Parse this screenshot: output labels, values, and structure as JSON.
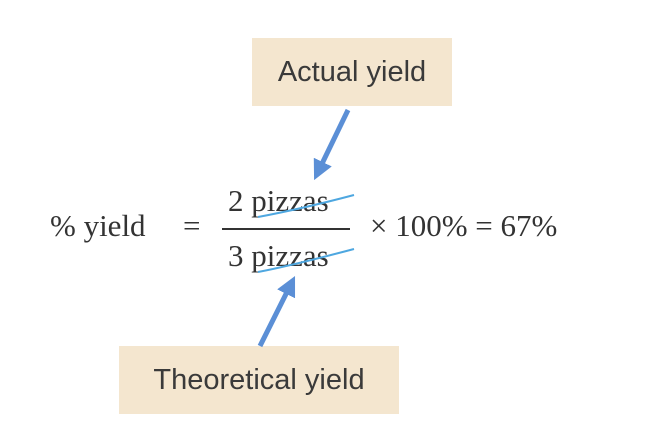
{
  "labels": {
    "actual": "Actual yield",
    "theoretical": "Theoretical yield"
  },
  "equation": {
    "lhs": "% yield",
    "equals": "=",
    "numerator": "2 pizzas",
    "denominator": "3 pizzas",
    "rhs": "× 100% = 67%"
  },
  "colors": {
    "label_bg": "#f4e6cf",
    "arrow": "#5b8fd6",
    "cancel_line": "#4ea7e0",
    "text": "#333333"
  }
}
